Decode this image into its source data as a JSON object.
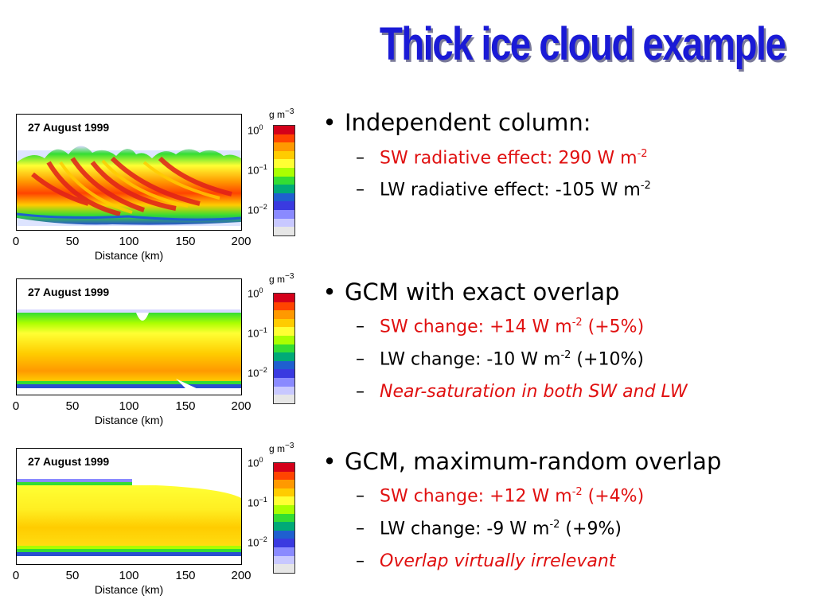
{
  "slide": {
    "title": "Thick ice cloud example"
  },
  "panels": [
    {
      "date": "27 August 1999",
      "x_ticks": [
        "0",
        "50",
        "100",
        "150",
        "200"
      ],
      "x_label": "Distance (km)",
      "colorbar_unit": "g m",
      "colorbar_unit_exp": "−3",
      "colorbar_ticks": [
        {
          "base": "10",
          "exp": "0"
        },
        {
          "base": "10",
          "exp": "−1"
        },
        {
          "base": "10",
          "exp": "−2"
        }
      ]
    },
    {
      "date": "27 August 1999",
      "x_ticks": [
        "0",
        "50",
        "100",
        "150",
        "200"
      ],
      "x_label": "Distance (km)",
      "colorbar_unit": "g m",
      "colorbar_unit_exp": "−3",
      "colorbar_ticks": [
        {
          "base": "10",
          "exp": "0"
        },
        {
          "base": "10",
          "exp": "−1"
        },
        {
          "base": "10",
          "exp": "−2"
        }
      ]
    },
    {
      "date": "27 August 1999",
      "x_ticks": [
        "0",
        "50",
        "100",
        "150",
        "200"
      ],
      "x_label": "Distance (km)",
      "colorbar_unit": "g m",
      "colorbar_unit_exp": "−3",
      "colorbar_ticks": [
        {
          "base": "10",
          "exp": "0"
        },
        {
          "base": "10",
          "exp": "−1"
        },
        {
          "base": "10",
          "exp": "−2"
        }
      ]
    }
  ],
  "colorbar_colors": [
    "#d4001a",
    "#ff4400",
    "#ff9900",
    "#ffcc00",
    "#ffff33",
    "#aaff00",
    "#33dd33",
    "#00aa77",
    "#1f5fd0",
    "#3a3ae0",
    "#8a8aff",
    "#c8c8ff",
    "#e6e6e6"
  ],
  "bullets": [
    {
      "text": "Independent column:",
      "subs": [
        {
          "pre": "SW radiative effect: 290 W m",
          "sup": "-2",
          "post": "",
          "red": true,
          "italic": false
        },
        {
          "pre": "LW radiative effect: -105 W m",
          "sup": "-2",
          "post": "",
          "red": false,
          "italic": false
        }
      ]
    },
    {
      "text": "GCM with exact overlap",
      "subs": [
        {
          "pre": "SW change: +14 W m",
          "sup": "-2",
          "post": " (+5%)",
          "red": true,
          "italic": false
        },
        {
          "pre": "LW change: -10 W m",
          "sup": "-2",
          "post": " (+10%)",
          "red": false,
          "italic": false
        },
        {
          "pre": "Near-saturation in both SW and LW",
          "sup": "",
          "post": "",
          "red": true,
          "italic": true
        }
      ]
    },
    {
      "text": "GCM, maximum-random overlap",
      "subs": [
        {
          "pre": "SW change: +12 W m",
          "sup": "-2",
          "post": " (+4%)",
          "red": true,
          "italic": false
        },
        {
          "pre": "LW change: -9 W m",
          "sup": "-2",
          "post": " (+9%)",
          "red": false,
          "italic": false
        },
        {
          "pre": "Overlap virtually irrelevant",
          "sup": "",
          "post": "",
          "red": true,
          "italic": true
        }
      ]
    }
  ]
}
